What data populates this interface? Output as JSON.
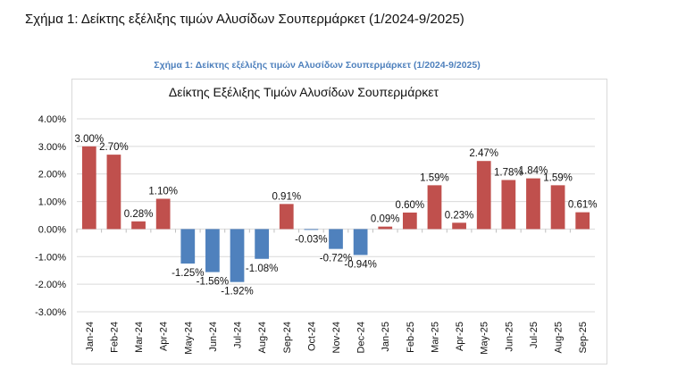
{
  "page": {
    "title": "Σχήμα 1: Δείκτης εξέλιξης τιμών Αλυσίδων Σουπερμάρκετ (1/2024-9/2025)"
  },
  "figure": {
    "caption": "Σχήμα 1: Δείκτης εξέλιξης τιμών Αλυσίδων Σουπερμάρκετ (1/2024-9/2025)"
  },
  "chart_data": {
    "type": "bar",
    "title": "Δείκτης Εξέλιξης Τιμών Αλυσίδων Σουπερμάρκετ",
    "xlabel": "",
    "ylabel": "",
    "categories": [
      "Jan-24",
      "Feb-24",
      "Mar-24",
      "Apr-24",
      "May-24",
      "Jun-24",
      "Jul-24",
      "Aug-24",
      "Sep-24",
      "Oct-24",
      "Nov-24",
      "Dec-24",
      "Jan-25",
      "Feb-25",
      "Mar-25",
      "Apr-25",
      "May-25",
      "Jun-25",
      "Jul-25",
      "Aug-25",
      "Sep-25"
    ],
    "values": [
      3.0,
      2.7,
      0.28,
      1.1,
      -1.25,
      -1.56,
      -1.92,
      -1.08,
      0.91,
      -0.03,
      -0.72,
      -0.94,
      0.09,
      0.6,
      1.59,
      0.23,
      2.47,
      1.78,
      1.84,
      1.59,
      0.61
    ],
    "data_labels": [
      "3.00%",
      "2.70%",
      "0.28%",
      "1.10%",
      "-1.25%",
      "-1.56%",
      "-1.92%",
      "-1.08%",
      "0.91%",
      "-0.03%",
      "-0.72%",
      "-0.94%",
      "0.09%",
      "0.60%",
      "1.59%",
      "0.23%",
      "2.47%",
      "1.78%",
      "1.84%",
      "1.59%",
      "0.61%"
    ],
    "y_ticks": [
      "4.00%",
      "3.00%",
      "2.00%",
      "1.00%",
      "0.00%",
      "-1.00%",
      "-2.00%",
      "-3.00%"
    ],
    "ylim": [
      -3,
      4
    ],
    "grid": true,
    "legend": "none",
    "colors": {
      "positive": "#c0504d",
      "negative": "#4f81bd",
      "grid": "#d9d9d9"
    }
  }
}
